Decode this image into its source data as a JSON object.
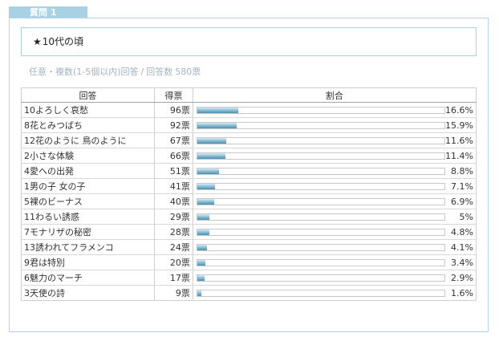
{
  "question_tab": "質問 1",
  "title": {
    "icon": "star-icon",
    "text": "10代の頃",
    "star": "★"
  },
  "meta": {
    "answer_type": "任意・複数(1-5個以内)回答",
    "separator": "/",
    "count_label": "回答数",
    "count_value": "580票"
  },
  "table": {
    "headers": {
      "answer": "回答",
      "votes": "得票",
      "ratio": "割合"
    },
    "bar_color": "#4b8fb0"
  },
  "chart_data": {
    "type": "bar",
    "categories": [
      "10よろしく哀愁",
      "8花とみつばち",
      "12花のように 鳥のように",
      "2小さな体験",
      "4愛への出発",
      "1男の子 女の子",
      "5裸のビーナス",
      "11わるい誘惑",
      "7モナリザの秘密",
      "13誘われてフラメンコ",
      "9君は特別",
      "6魅力のマーチ",
      "3天使の詩"
    ],
    "votes": [
      "96票",
      "92票",
      "67票",
      "66票",
      "51票",
      "41票",
      "40票",
      "29票",
      "28票",
      "24票",
      "20票",
      "17票",
      "9票"
    ],
    "values": [
      16.6,
      15.9,
      11.6,
      11.4,
      8.8,
      7.1,
      6.9,
      5,
      4.8,
      4.1,
      3.4,
      2.9,
      1.6
    ],
    "value_labels": [
      "16.6%",
      "15.9%",
      "11.6%",
      "11.4%",
      "8.8%",
      "7.1%",
      "6.9%",
      "5%",
      "4.8%",
      "4.1%",
      "3.4%",
      "2.9%",
      "1.6%"
    ],
    "xlim": [
      0,
      100
    ]
  }
}
